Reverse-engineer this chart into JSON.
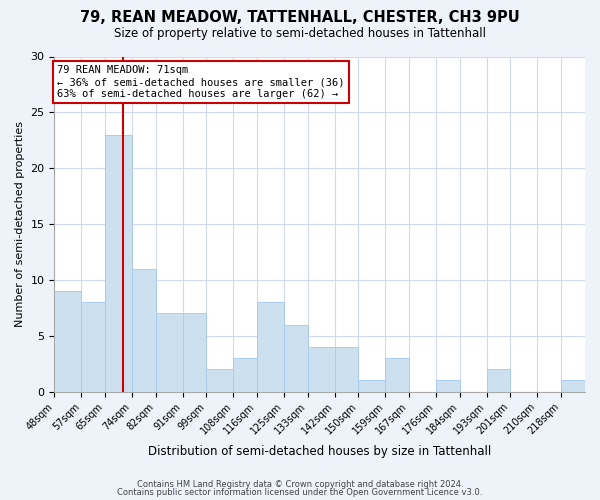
{
  "title": "79, REAN MEADOW, TATTENHALL, CHESTER, CH3 9PU",
  "subtitle": "Size of property relative to semi-detached houses in Tattenhall",
  "xlabel": "Distribution of semi-detached houses by size in Tattenhall",
  "ylabel": "Number of semi-detached properties",
  "bin_labels": [
    "48sqm",
    "57sqm",
    "65sqm",
    "74sqm",
    "82sqm",
    "91sqm",
    "99sqm",
    "108sqm",
    "116sqm",
    "125sqm",
    "133sqm",
    "142sqm",
    "150sqm",
    "159sqm",
    "167sqm",
    "176sqm",
    "184sqm",
    "193sqm",
    "201sqm",
    "210sqm",
    "218sqm"
  ],
  "bin_edges": [
    48,
    57,
    65,
    74,
    82,
    91,
    99,
    108,
    116,
    125,
    133,
    142,
    150,
    159,
    167,
    176,
    184,
    193,
    201,
    210,
    218,
    226
  ],
  "counts": [
    9,
    8,
    23,
    11,
    7,
    7,
    2,
    3,
    8,
    6,
    4,
    4,
    1,
    3,
    0,
    1,
    0,
    2,
    0,
    0,
    1
  ],
  "bar_color": "#cce0f0",
  "bar_edgecolor": "#aaccee",
  "vline_x": 71,
  "vline_color": "#cc0000",
  "annotation_title": "79 REAN MEADOW: 71sqm",
  "annotation_line1": "← 36% of semi-detached houses are smaller (36)",
  "annotation_line2": "63% of semi-detached houses are larger (62) →",
  "annotation_box_facecolor": "#ffffff",
  "annotation_box_edgecolor": "#cc0000",
  "ylim": [
    0,
    30
  ],
  "yticks": [
    0,
    5,
    10,
    15,
    20,
    25,
    30
  ],
  "footer1": "Contains HM Land Registry data © Crown copyright and database right 2024.",
  "footer2": "Contains public sector information licensed under the Open Government Licence v3.0.",
  "background_color": "#eef2f9",
  "plot_background_color": "#ffffff",
  "grid_color": "#d0d8ea",
  "title_fontsize": 10.5,
  "subtitle_fontsize": 8.5
}
